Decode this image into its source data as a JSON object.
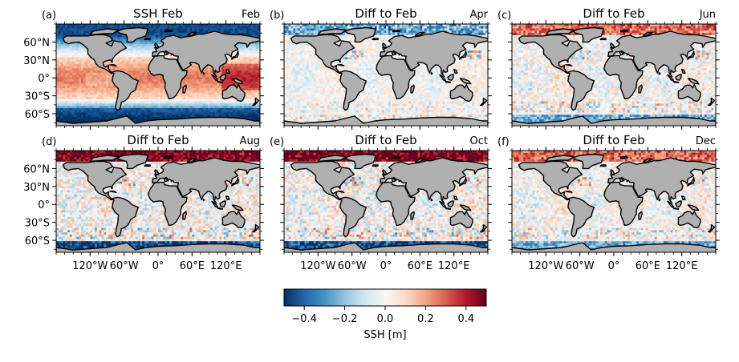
{
  "chart_data": {
    "type": "heatmap",
    "colormap": "RdBu_r",
    "colors": {
      "land": "#b0b0b0",
      "coast": "#000000",
      "cmap_stops": [
        "#053061",
        "#2166ac",
        "#4393c3",
        "#92c5de",
        "#d1e5f0",
        "#f7f7f7",
        "#fddbc7",
        "#f4a582",
        "#d6604d",
        "#b2182b",
        "#67001f"
      ]
    },
    "panels": [
      {
        "letter": "(a)",
        "title": "SSH Feb",
        "month": "Feb",
        "pattern": "absolute"
      },
      {
        "letter": "(b)",
        "title": "Diff to Feb",
        "month": "Apr",
        "pattern": "diff_small"
      },
      {
        "letter": "(c)",
        "title": "Diff to Feb",
        "month": "Jun",
        "pattern": "diff_mid"
      },
      {
        "letter": "(d)",
        "title": "Diff to Feb",
        "month": "Aug",
        "pattern": "diff_large"
      },
      {
        "letter": "(e)",
        "title": "Diff to Feb",
        "month": "Oct",
        "pattern": "diff_large"
      },
      {
        "letter": "(f)",
        "title": "Diff to Feb",
        "month": "Dec",
        "pattern": "diff_mid"
      }
    ],
    "lat_ticks": [
      "60°N",
      "30°N",
      "0°",
      "30°S",
      "60°S"
    ],
    "lat_values": [
      60,
      30,
      0,
      -30,
      -60
    ],
    "lon_ticks": [
      "120°W",
      "60°W",
      "0°",
      "60°E",
      "120°E"
    ],
    "lon_values": [
      -120,
      -60,
      0,
      60,
      120
    ],
    "lon_range": [
      -180,
      180
    ],
    "lat_range": [
      -80,
      90
    ],
    "colorbar": {
      "label": "SSH [m]",
      "ticks": [
        "−0.4",
        "−0.2",
        "0.0",
        "0.2",
        "0.4"
      ],
      "tick_values": [
        -0.4,
        -0.2,
        0,
        0.2,
        0.4
      ],
      "range": [
        -0.5,
        0.5
      ]
    }
  }
}
